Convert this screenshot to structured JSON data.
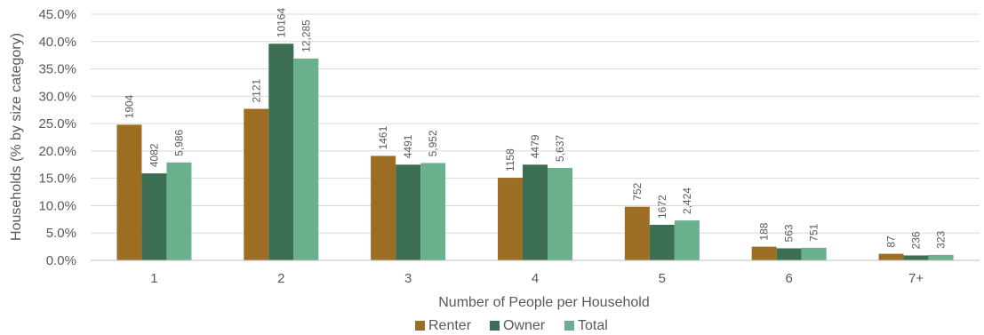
{
  "chart_data": {
    "type": "bar",
    "title": "",
    "xlabel": "Number of People per Household",
    "ylabel": "Households (% by size category)",
    "ylim": [
      0,
      45
    ],
    "yticks": [
      "0.0%",
      "5.0%",
      "10.0%",
      "15.0%",
      "20.0%",
      "25.0%",
      "30.0%",
      "35.0%",
      "40.0%",
      "45.0%"
    ],
    "categories": [
      "1",
      "2",
      "3",
      "4",
      "5",
      "6",
      "7+"
    ],
    "grid": "horizontal",
    "legend_position": "bottom",
    "series": [
      {
        "name": "Renter",
        "color": "#9b6e23",
        "values": [
          24.8,
          27.7,
          19.1,
          15.1,
          9.8,
          2.5,
          1.2
        ],
        "labels": [
          "1904",
          "2121",
          "1461",
          "1158",
          "752",
          "188",
          "87"
        ]
      },
      {
        "name": "Owner",
        "color": "#3b6e52",
        "values": [
          15.9,
          39.6,
          17.5,
          17.5,
          6.5,
          2.2,
          0.9
        ],
        "labels": [
          "4082",
          "10164",
          "4491",
          "4479",
          "1672",
          "563",
          "236"
        ]
      },
      {
        "name": "Total",
        "color": "#6bb08c",
        "values": [
          17.9,
          36.9,
          17.8,
          16.9,
          7.3,
          2.3,
          1.0
        ],
        "labels": [
          "5,986",
          "12,285",
          "5,952",
          "5,637",
          "2,424",
          "751",
          "323"
        ]
      }
    ]
  }
}
